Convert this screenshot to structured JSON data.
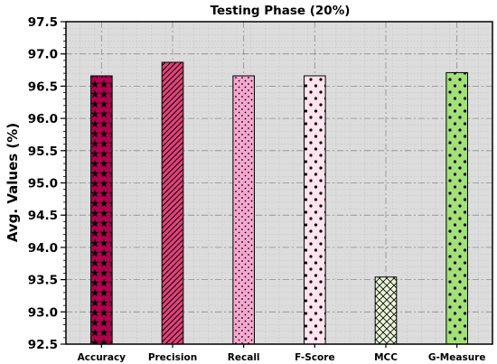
{
  "chart_data": {
    "type": "bar",
    "title": "Testing Phase (20%)",
    "xlabel": "",
    "ylabel": "Avg. Values (%)",
    "ylim": [
      92.5,
      97.5
    ],
    "yticks": [
      "92.5",
      "93.0",
      "93.5",
      "94.0",
      "94.5",
      "95.0",
      "95.5",
      "96.0",
      "96.5",
      "97.0",
      "97.5"
    ],
    "categories": [
      "Accuracy",
      "Precision",
      "Recall",
      "F-Score",
      "MCC",
      "G-Measure"
    ],
    "values": [
      96.66,
      96.87,
      96.66,
      96.66,
      93.54,
      96.71
    ],
    "colors": [
      "#b0004e",
      "#e8407f",
      "#f7a8cf",
      "#ffe3ee",
      "#eaf5d8",
      "#a4e07a"
    ],
    "patterns": [
      "stars",
      "diagonal-hatch",
      "small-dots",
      "large-dots",
      "crosshatch",
      "large-dots"
    ],
    "grid": true,
    "legend": "none"
  }
}
